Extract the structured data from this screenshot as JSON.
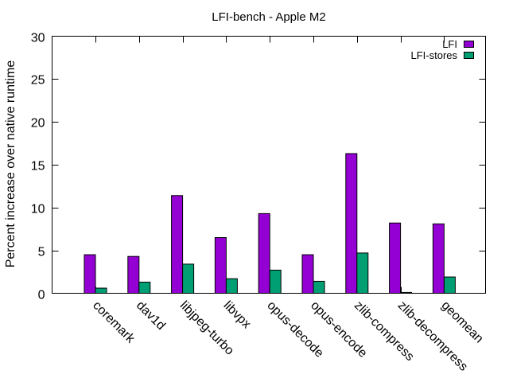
{
  "chart_data": {
    "type": "bar",
    "title": "LFI-bench - Apple M2",
    "xlabel": "",
    "ylabel": "Percent increase over native runtime",
    "ylim": [
      0,
      30
    ],
    "yticks": [
      0,
      5,
      10,
      15,
      20,
      25,
      30
    ],
    "grid": false,
    "legend_position": "top-right",
    "categories": [
      "coremark",
      "dav1d",
      "libjpeg-turbo",
      "libvpx",
      "opus-decode",
      "opus-encode",
      "zlib-compress",
      "zlib-decompress",
      "geomean"
    ],
    "series": [
      {
        "name": "LFI",
        "color": "#9400d3",
        "values": [
          4.5,
          4.3,
          11.4,
          6.5,
          9.3,
          4.5,
          16.3,
          8.2,
          8.1
        ]
      },
      {
        "name": "LFI-stores",
        "color": "#009e73",
        "values": [
          0.6,
          1.3,
          3.4,
          1.7,
          2.7,
          1.4,
          4.7,
          0.1,
          1.9
        ]
      }
    ]
  }
}
